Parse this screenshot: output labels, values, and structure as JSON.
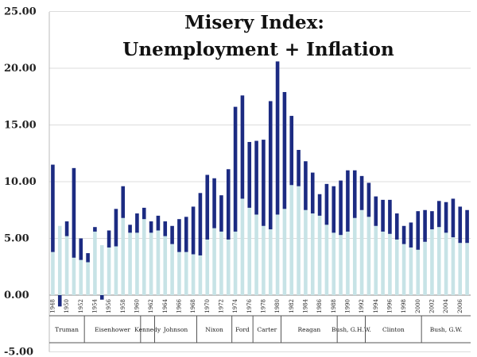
{
  "chart_data": {
    "type": "bar",
    "title": "Misery Index:",
    "subtitle": "Unemployment + Inflation",
    "ylim": [
      -5,
      25
    ],
    "yticks": [
      "-5.00",
      "0.00",
      "5.00",
      "10.00",
      "15.00",
      "20.00",
      "25.00"
    ],
    "grid": true,
    "colors": {
      "unemployment": "#c7e3e6",
      "inflation": "#1c2b82"
    },
    "categories": [
      "1948",
      "1949",
      "1950",
      "1951",
      "1952",
      "1953",
      "1954",
      "1955",
      "1956",
      "1957",
      "1958",
      "1959",
      "1960",
      "1961",
      "1962",
      "1963",
      "1964",
      "1965",
      "1966",
      "1967",
      "1968",
      "1969",
      "1970",
      "1971",
      "1972",
      "1973",
      "1974",
      "1975",
      "1976",
      "1977",
      "1978",
      "1979",
      "1980",
      "1981",
      "1982",
      "1983",
      "1984",
      "1985",
      "1986",
      "1987",
      "1988",
      "1989",
      "1990",
      "1991",
      "1992",
      "1993",
      "1994",
      "1995",
      "1996",
      "1997",
      "1998",
      "1999",
      "2000",
      "2001",
      "2002",
      "2003",
      "2004",
      "2005",
      "2006",
      "2007"
    ],
    "x_tick_labels": [
      "1948",
      "1950",
      "1952",
      "1954",
      "1956",
      "1958",
      "1960",
      "1962",
      "1964",
      "1966",
      "1968",
      "1970",
      "1972",
      "1974",
      "1976",
      "1978",
      "1980",
      "1982",
      "1984",
      "1986",
      "1988",
      "1990",
      "1992",
      "1994",
      "1996",
      "1998",
      "2000",
      "2002",
      "2004",
      "2006"
    ],
    "series": [
      {
        "key": "unemployment",
        "values": [
          3.8,
          6.1,
          5.2,
          3.3,
          3.1,
          2.9,
          5.6,
          4.4,
          4.2,
          4.3,
          6.8,
          5.5,
          5.5,
          6.7,
          5.5,
          5.7,
          5.2,
          4.5,
          3.8,
          3.8,
          3.6,
          3.5,
          4.9,
          5.9,
          5.6,
          4.9,
          5.6,
          8.5,
          7.7,
          7.1,
          6.1,
          5.8,
          7.1,
          7.6,
          9.7,
          9.6,
          7.5,
          7.2,
          7.0,
          6.2,
          5.5,
          5.3,
          5.6,
          6.8,
          7.5,
          6.9,
          6.1,
          5.6,
          5.4,
          4.9,
          4.5,
          4.2,
          4.0,
          4.7,
          5.8,
          6.0,
          5.5,
          5.1,
          4.6,
          4.6
        ]
      },
      {
        "key": "inflation",
        "values": [
          7.7,
          -1.0,
          1.3,
          7.9,
          1.9,
          0.8,
          0.4,
          -0.4,
          1.5,
          3.3,
          2.8,
          0.7,
          1.7,
          1.0,
          1.0,
          1.3,
          1.3,
          1.6,
          2.9,
          3.1,
          4.2,
          5.5,
          5.7,
          4.4,
          3.2,
          6.2,
          11.0,
          9.1,
          5.8,
          6.5,
          7.6,
          11.3,
          13.5,
          10.3,
          6.1,
          3.2,
          4.3,
          3.6,
          1.9,
          3.6,
          4.1,
          4.8,
          5.4,
          4.2,
          3.0,
          3.0,
          2.6,
          2.8,
          3.0,
          2.3,
          1.6,
          2.2,
          3.4,
          2.8,
          1.6,
          2.3,
          2.7,
          3.4,
          3.2,
          2.9
        ]
      }
    ],
    "presidents": [
      {
        "name": "Truman",
        "start": 1948,
        "end": 1952
      },
      {
        "name": "Eisenhower",
        "start": 1953,
        "end": 1960
      },
      {
        "name": "Kennedy",
        "start": 1961,
        "end": 1962
      },
      {
        "name": "Johnson",
        "start": 1963,
        "end": 1968
      },
      {
        "name": "Nixon",
        "start": 1969,
        "end": 1973
      },
      {
        "name": "Ford",
        "start": 1974,
        "end": 1976
      },
      {
        "name": "Carter",
        "start": 1977,
        "end": 1980
      },
      {
        "name": "Reagan",
        "start": 1981,
        "end": 1988
      },
      {
        "name": "Bush, G.H.W.",
        "start": 1989,
        "end": 1992
      },
      {
        "name": "Clinton",
        "start": 1993,
        "end": 2000
      },
      {
        "name": "Bush, G.W.",
        "start": 2001,
        "end": 2007
      }
    ]
  }
}
